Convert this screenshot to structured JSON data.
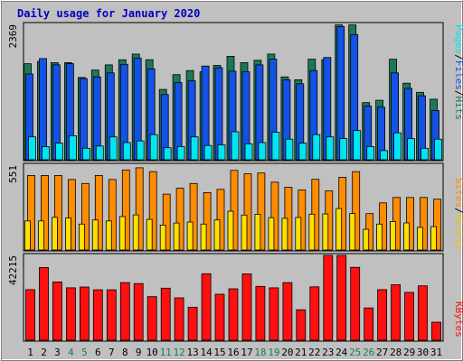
{
  "title": "Daily usage for January 2020",
  "colors": {
    "background": "#c0c0c0",
    "title": "#0000c0",
    "hits": "#1b7a55",
    "files": "#1452e6",
    "pages": "#00e5f0",
    "sites": "#ff8c00",
    "visits": "#ffe000",
    "kbytes": "#ff1010",
    "weekend_label": "#1b7a55"
  },
  "panels": {
    "top": {
      "ymax_label": "2369",
      "legend": {
        "pages": "Pages",
        "files": "Files",
        "hits": "Hits",
        "sep1": "/",
        "sep2": "/"
      }
    },
    "middle": {
      "ymax_label": "551",
      "legend": {
        "sites": "Sites",
        "visits": "Visits",
        "sep": "/"
      }
    },
    "bottom": {
      "ymax_label": "42215",
      "legend": {
        "kbytes": "KBytes"
      }
    }
  },
  "chart_data": {
    "type": "bar",
    "title": "Daily usage for January 2020",
    "categories": [
      "1",
      "2",
      "3",
      "4",
      "5",
      "6",
      "7",
      "8",
      "9",
      "10",
      "11",
      "12",
      "13",
      "14",
      "15",
      "16",
      "17",
      "18",
      "19",
      "20",
      "21",
      "22",
      "23",
      "24",
      "25",
      "26",
      "27",
      "28",
      "29",
      "30",
      "31"
    ],
    "weekend_days": [
      4,
      5,
      11,
      12,
      18,
      19,
      25,
      26
    ],
    "panels": [
      {
        "ymax": 2369,
        "series": [
          {
            "name": "Hits",
            "values": [
              1680,
              1720,
              1700,
              1700,
              1440,
              1570,
              1660,
              1750,
              1850,
              1750,
              1230,
              1490,
              1560,
              1540,
              1650,
              1810,
              1700,
              1740,
              1850,
              1450,
              1400,
              1760,
              1750,
              2360,
              2360,
              1000,
              1040,
              1760,
              1340,
              1180,
              1060
            ]
          },
          {
            "name": "Files",
            "values": [
              1500,
              1770,
              1660,
              1680,
              1420,
              1450,
              1520,
              1670,
              1780,
              1590,
              1140,
              1350,
              1380,
              1640,
              1610,
              1550,
              1540,
              1660,
              1760,
              1400,
              1330,
              1560,
              1790,
              2330,
              2190,
              940,
              920,
              1520,
              1250,
              1120,
              860
            ]
          },
          {
            "name": "Pages",
            "values": [
              400,
              230,
              290,
              420,
              200,
              240,
              400,
              300,
              330,
              440,
              210,
              230,
              400,
              250,
              260,
              490,
              280,
              300,
              480,
              360,
              290,
              440,
              400,
              370,
              510,
              230,
              160,
              470,
              370,
              200,
              360
            ]
          }
        ]
      },
      {
        "ymax": 551,
        "series": [
          {
            "name": "Sites",
            "values": [
              484,
              484,
              484,
              458,
              432,
              484,
              458,
              520,
              534,
              509,
              363,
              401,
              432,
              373,
              394,
              517,
              495,
              500,
              440,
              408,
              390,
              459,
              384,
              472,
              509,
              236,
              306,
              341,
              341,
              341,
              330
            ]
          },
          {
            "name": "Visits",
            "values": [
              189,
              189,
              212,
              208,
              168,
              195,
              189,
              217,
              228,
              199,
              162,
              175,
              182,
              168,
              195,
              252,
              227,
              232,
              210,
              206,
              211,
              233,
              234,
              269,
              237,
              134,
              168,
              185,
              176,
              147,
              152
            ]
          }
        ]
      },
      {
        "ymax": 42215,
        "series": [
          {
            "name": "KBytes",
            "values": [
              25200,
              36200,
              29000,
              26100,
              26500,
              25100,
              25100,
              28700,
              28200,
              21700,
              25900,
              21100,
              16400,
              33100,
              22900,
              25600,
              33000,
              26800,
              26100,
              28700,
              15200,
              26600,
              42200,
              42200,
              36300,
              16100,
              25200,
              27600,
              23800,
              27100,
              9000
            ]
          }
        ]
      }
    ]
  }
}
